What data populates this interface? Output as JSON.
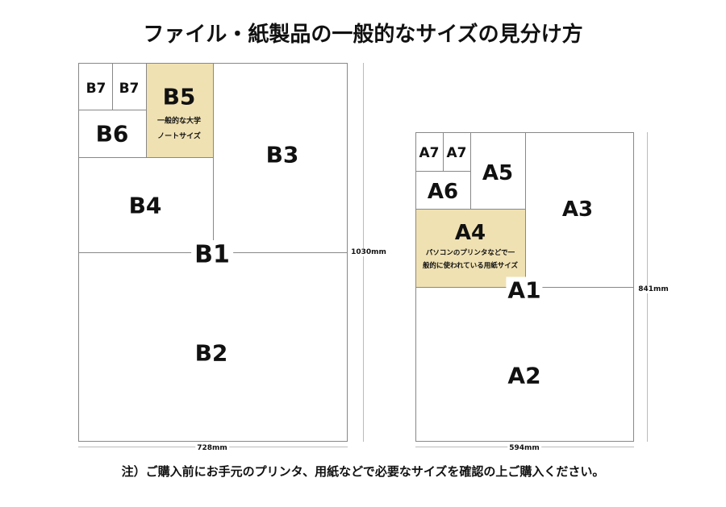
{
  "title": "ファイル・紙製品の一般的なサイズの見分け方",
  "note": "注）ご購入前にお手元のプリンタ、用紙などで必要なサイズを確認の上ご購入ください。",
  "colors": {
    "highlight": "#efe1b2",
    "border": "#888888"
  },
  "b_series": {
    "labels": {
      "b1": "B1",
      "b2": "B2",
      "b3": "B3",
      "b4": "B4",
      "b5": "B5",
      "b6": "B6",
      "b7a": "B7",
      "b7b": "B7"
    },
    "b5_desc_line1": "一般的な大学",
    "b5_desc_line2": "ノートサイズ",
    "height": "1030mm",
    "width": "728mm"
  },
  "a_series": {
    "labels": {
      "a1": "A1",
      "a2": "A2",
      "a3": "A3",
      "a4": "A4",
      "a5": "A5",
      "a6": "A6",
      "a7a": "A7",
      "a7b": "A7"
    },
    "a4_desc_line1": "パソコンのプリンタなどで一",
    "a4_desc_line2": "般的に使われている用紙サイズ",
    "height": "841mm",
    "width": "594mm"
  }
}
